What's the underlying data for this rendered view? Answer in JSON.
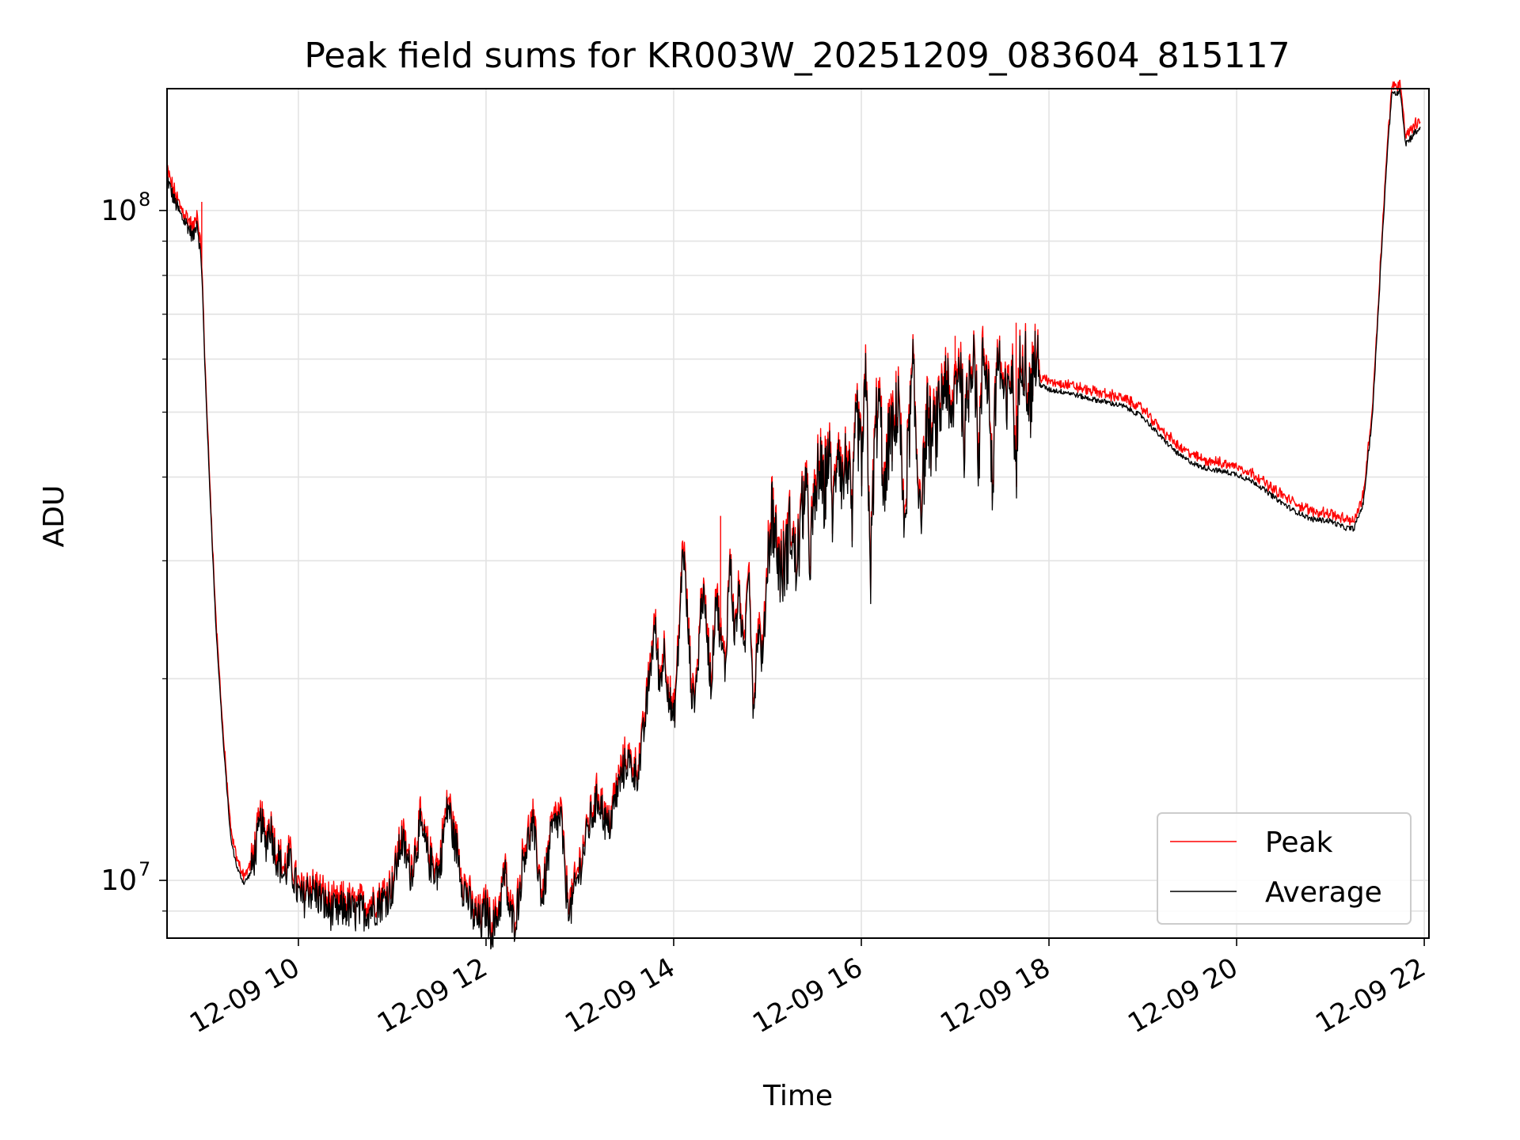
{
  "chart_data": {
    "type": "line",
    "title": "Peak field sums for KR003W_20251209_083604_815117",
    "xlabel": "Time",
    "ylabel": "ADU",
    "yscale": "log",
    "xlim_hours": [
      8.6,
      22.05
    ],
    "ylim": [
      8200000,
      152000000
    ],
    "grid": true,
    "legend_position": "lower-right",
    "x_tick_hours": [
      10,
      12,
      14,
      16,
      18,
      20,
      22
    ],
    "x_tick_labels": [
      "12-09 10",
      "12-09 12",
      "12-09 14",
      "12-09 16",
      "12-09 18",
      "12-09 20",
      "12-09 22"
    ],
    "y_tick_labels": [
      {
        "label": "10",
        "exp": "8",
        "value": 100000000
      },
      {
        "label": "10",
        "exp": "7",
        "value": 10000000
      }
    ],
    "colors": {
      "peak": "#ff0000",
      "average": "#000000",
      "grid": "#e3e3e3"
    },
    "series": [
      {
        "name": "Peak",
        "color": "#ff0000"
      },
      {
        "name": "Average",
        "color": "#000000"
      }
    ],
    "average_hours": [
      8.6,
      8.67,
      8.75,
      8.82,
      8.88,
      8.92,
      8.97,
      9.0,
      9.05,
      9.12,
      9.2,
      9.28,
      9.35,
      9.42,
      9.5,
      9.55,
      9.6,
      9.65,
      9.7,
      9.75,
      9.8,
      9.85,
      9.9,
      9.95,
      10.0,
      10.05,
      10.1,
      10.2,
      10.3,
      10.4,
      10.5,
      10.6,
      10.7,
      10.8,
      10.9,
      11.0,
      11.1,
      11.2,
      11.3,
      11.4,
      11.5,
      11.55,
      11.6,
      11.65,
      11.7,
      11.75,
      11.8,
      11.85,
      11.9,
      11.95,
      12.0,
      12.05,
      12.1,
      12.15,
      12.2,
      12.25,
      12.3,
      12.35,
      12.4,
      12.5,
      12.6,
      12.7,
      12.8,
      12.85,
      12.9,
      13.0,
      13.1,
      13.2,
      13.3,
      13.4,
      13.5,
      13.6,
      13.65,
      13.7,
      13.75,
      13.8,
      13.85,
      13.9,
      13.95,
      14.0,
      14.05,
      14.1,
      14.15,
      14.2,
      14.25,
      14.3,
      14.35,
      14.4,
      14.45,
      14.5,
      14.55,
      14.6,
      14.65,
      14.7,
      14.75,
      14.8,
      14.85,
      14.9,
      14.95,
      15.0,
      15.05,
      15.1,
      15.15,
      15.2,
      15.25,
      15.3,
      15.35,
      15.4,
      15.45,
      15.5,
      15.55,
      15.6,
      15.65,
      15.7,
      15.75,
      15.8,
      15.85,
      15.9,
      15.95,
      16.0,
      16.05,
      16.1,
      16.15,
      16.2,
      16.25,
      16.3,
      16.35,
      16.4,
      16.45,
      16.5,
      16.55,
      16.6,
      16.65,
      16.7,
      16.75,
      16.8,
      16.85,
      16.9,
      16.95,
      17.0,
      17.05,
      17.1,
      17.15,
      17.2,
      17.25,
      17.3,
      17.35,
      17.4,
      17.45,
      17.5,
      17.55,
      17.6,
      17.65,
      17.7,
      17.75,
      17.8,
      17.85,
      17.9,
      18.0,
      18.2,
      18.4,
      18.6,
      18.8,
      19.0,
      19.2,
      19.4,
      19.6,
      19.8,
      20.0,
      20.2,
      20.4,
      20.6,
      20.8,
      21.0,
      21.15,
      21.25,
      21.35,
      21.45,
      21.55,
      21.6,
      21.65,
      21.7,
      21.75,
      21.8,
      21.85,
      21.88,
      21.92,
      21.96,
      22.0,
      22.05
    ],
    "average_values": [
      112000000,
      104000000,
      98000000,
      95000000,
      91000000,
      97000000,
      82000000,
      60000000,
      40000000,
      24000000,
      16000000,
      11500000,
      10400000,
      9900000,
      10300000,
      11200000,
      12200000,
      11300000,
      12100000,
      11000000,
      10600000,
      10100000,
      10700000,
      10100000,
      9500000,
      9300000,
      9700000,
      9500000,
      9100000,
      8900000,
      9100000,
      8900000,
      9000000,
      9100000,
      9300000,
      9700000,
      11500000,
      10200000,
      12000000,
      10600000,
      10200000,
      11800000,
      13000000,
      11600000,
      11000000,
      9800000,
      9500000,
      8900000,
      8700000,
      8600000,
      9100000,
      8400000,
      8600000,
      9200000,
      10300000,
      8900000,
      8600000,
      9400000,
      10900000,
      12000000,
      9300000,
      11800000,
      12400000,
      9700000,
      9000000,
      10400000,
      12100000,
      13300000,
      11800000,
      13600000,
      15100000,
      14300000,
      15300000,
      17500000,
      20700000,
      24000000,
      19500000,
      22000000,
      18800000,
      17000000,
      22000000,
      32000000,
      24000000,
      18300000,
      20000000,
      27000000,
      24000000,
      19300000,
      27000000,
      22800000,
      20500000,
      30500000,
      23000000,
      27000000,
      21000000,
      30500000,
      17800000,
      24000000,
      21000000,
      30000000,
      36000000,
      31000000,
      28500000,
      30500000,
      34000000,
      29000000,
      33000000,
      39000000,
      31000000,
      35000000,
      42000000,
      37000000,
      44000000,
      34500000,
      47000000,
      38500000,
      43500000,
      33000000,
      50000000,
      41000000,
      55000000,
      29000000,
      48000000,
      50000000,
      36000000,
      47000000,
      45000000,
      55000000,
      33000000,
      44000000,
      57000000,
      40000000,
      37000000,
      49000000,
      45000000,
      47000000,
      51000000,
      58000000,
      46000000,
      55000000,
      60000000,
      44500000,
      56000000,
      64000000,
      42000000,
      61000000,
      57000000,
      38000000,
      62000000,
      55000000,
      49000000,
      59000000,
      41000000,
      63000000,
      59000000,
      51000000,
      61000000,
      55000000,
      54000000,
      53500000,
      52500000,
      51800000,
      51000000,
      49200000,
      45800000,
      43000000,
      41500000,
      40900000,
      40400000,
      39200000,
      37300000,
      35700000,
      34600000,
      34400000,
      33600000,
      33500000,
      36500000,
      50000000,
      90000000,
      118000000,
      148000000,
      150000000,
      150000000,
      126000000,
      128000000,
      130000000,
      131000000,
      134000000
    ],
    "peak_hours": [
      8.97,
      10.9,
      12.2,
      14.5,
      17.0,
      17.65,
      19.7,
      20.05
    ],
    "peak_values": [
      103000000,
      10000000,
      9800000,
      35000000,
      65000000,
      68000000,
      42500000,
      40500000
    ]
  }
}
